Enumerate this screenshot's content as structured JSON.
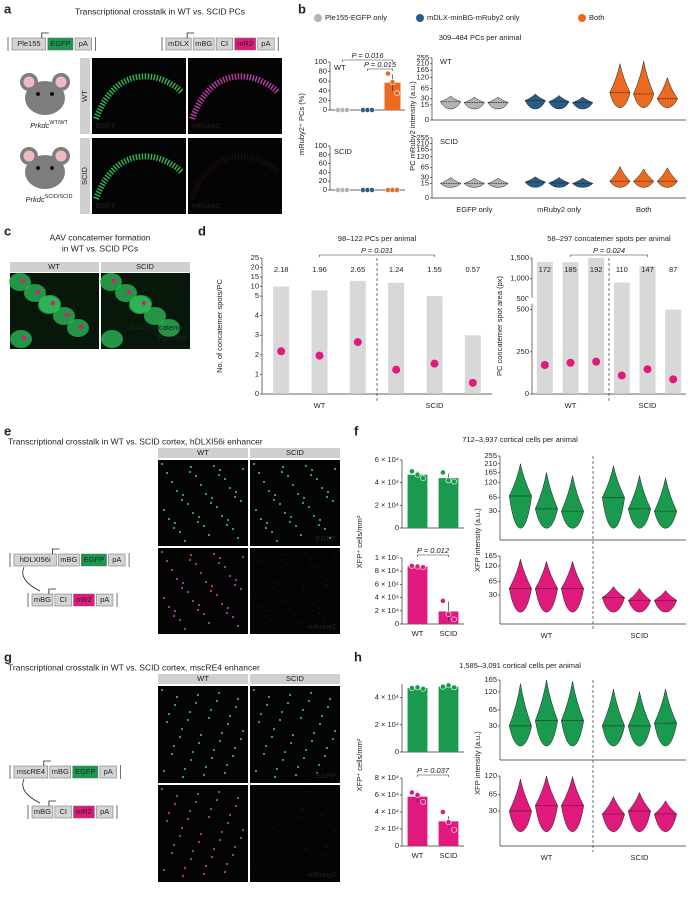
{
  "panels": {
    "a": {
      "label": "a",
      "title": "Transcriptional crosstalk in WT vs. SCID PCs",
      "constructs": [
        {
          "parts": [
            "Ple155",
            "EGFP",
            "pA"
          ],
          "colors": [
            "#d4d4d4",
            "#1a9a4e",
            "#d4d4d4"
          ]
        },
        {
          "parts": [
            "mDLX",
            "mBG",
            "CI",
            "mR2",
            "pA"
          ],
          "colors": [
            "#d4d4d4",
            "#d4d4d4",
            "#d4d4d4",
            "#e0197d",
            "#d4d4d4"
          ]
        }
      ],
      "mice": [
        {
          "name": "Prkdc",
          "sup": "WT/WT"
        },
        {
          "name": "Prkdc",
          "sup": "SCID/SCID"
        }
      ],
      "rows": [
        "WT",
        "SCID"
      ],
      "channels": [
        "EGFP",
        "mRuby2"
      ],
      "channel_colors": [
        "#3ddc6a",
        "#e04ad0"
      ]
    },
    "b": {
      "label": "b",
      "legend": [
        {
          "name": "Ple155-EGFP only",
          "color": "#b3b3b3"
        },
        {
          "name": "mDLX-minBG-mRuby2 only",
          "color": "#2a5b87"
        },
        {
          "name": "Both",
          "color": "#ea6a21"
        }
      ],
      "subtitle": "309–484 PCs per animal",
      "bars": {
        "ylabel": "mRuby2⁺ PCs (%)",
        "ylim": [
          0,
          100
        ],
        "yticks": [
          0,
          20,
          40,
          60,
          80,
          100
        ],
        "charts": [
          {
            "name": "WT",
            "values": [
              0,
              0,
              57
            ],
            "errors": [
              0,
              0,
              17
            ],
            "points": [
              [
                0,
                0,
                0
              ],
              [
                0,
                0,
                0
              ],
              [
                76,
                58,
                35
              ]
            ],
            "pvalues": [
              "P = 0.016",
              "P = 0.015"
            ]
          },
          {
            "name": "SCID",
            "values": [
              0,
              0,
              0
            ],
            "errors": [
              0,
              0,
              0
            ],
            "points": [
              [
                0,
                0,
                0
              ],
              [
                0,
                0,
                0
              ],
              [
                0,
                0,
                0
              ]
            ]
          }
        ]
      },
      "violins": {
        "ylabel": "PC mRuby2 intensity (a.u.)",
        "scale": "sqrt",
        "ylim": [
          0,
          255
        ],
        "yticks": [
          0,
          15,
          30,
          65,
          120,
          165,
          210,
          255
        ],
        "categories": [
          "EGFP only",
          "mRuby2 only",
          "Both"
        ],
        "charts": [
          {
            "name": "WT",
            "groups": [
              [
                [
                  8,
                  22,
                  38
                ],
                [
                  8,
                  20,
                  35
                ],
                [
                  8,
                  20,
                  35
                ]
              ],
              [
                [
                  8,
                  25,
                  45
                ],
                [
                  8,
                  22,
                  40
                ],
                [
                  8,
                  20,
                  35
                ]
              ],
              [
                [
                  10,
                  50,
                  210
                ],
                [
                  10,
                  45,
                  230
                ],
                [
                  10,
                  30,
                  120
                ]
              ]
            ]
          },
          {
            "name": "SCID",
            "groups": [
              [
                [
                  8,
                  15,
                  30
                ],
                [
                  8,
                  15,
                  28
                ],
                [
                  8,
                  15,
                  28
                ]
              ],
              [
                [
                  8,
                  18,
                  32
                ],
                [
                  8,
                  16,
                  30
                ],
                [
                  8,
                  15,
                  28
                ]
              ],
              [
                [
                  8,
                  20,
                  70
                ],
                [
                  8,
                  20,
                  60
                ],
                [
                  8,
                  20,
                  65
                ]
              ]
            ]
          }
        ]
      }
    },
    "c": {
      "label": "c",
      "title": [
        "AAV concatemer formation",
        "in WT vs. SCID PCs"
      ],
      "columns": [
        "WT",
        "SCID"
      ],
      "legend": [
        {
          "name": "AAV concatemer",
          "color": "#e0197d"
        },
        {
          "name": "Hoechst",
          "color": "#2fbf5a"
        }
      ]
    },
    "d": {
      "label": "d",
      "mean_color": "#e0197d",
      "left": {
        "subtitle": "98–122 PCs per animal",
        "pvalue": "P = 0.031",
        "ylabel": "No. of concatemer spots/PC",
        "ylim": [
          0,
          25
        ],
        "ybreak": 5,
        "yticks": [
          0,
          1,
          2,
          3,
          4,
          5,
          10,
          15,
          20,
          25
        ],
        "groups": [
          "WT",
          "SCID"
        ],
        "means": [
          2.18,
          1.96,
          2.65,
          1.24,
          1.55,
          0.57
        ],
        "maxima": [
          10,
          8,
          13,
          12,
          5,
          3
        ]
      },
      "right": {
        "subtitle": "58–297 concatemer spots per animal",
        "pvalue": "P = 0.024",
        "ylabel": "PC concatemer spot area (px)",
        "ylim": [
          0,
          500
        ],
        "yticks": [
          0,
          250,
          500
        ],
        "ylim_upper": [
          500,
          1500
        ],
        "yticks_upper": [
          500,
          {
            "value": 1000,
            "label": "1,000"
          },
          {
            "value": 1500,
            "label": "1,500"
          }
        ],
        "groups": [
          "WT",
          "SCID"
        ],
        "means": [
          172,
          185,
          192,
          110,
          147,
          87
        ],
        "maxima": [
          1400,
          1400,
          1500,
          900,
          1300,
          500
        ]
      }
    },
    "e": {
      "label": "e",
      "title": "Transcriptional crosstalk in WT vs. SCID cortex, hDLXI56i enhancer",
      "constructs": [
        {
          "parts": [
            "hDLXI56i",
            "mBG",
            "EGFP",
            "pA"
          ],
          "colors": [
            "#d4d4d4",
            "#d4d4d4",
            "#1a9a4e",
            "#d4d4d4"
          ]
        },
        {
          "parts": [
            "mBG",
            "CI",
            "mR2",
            "pA"
          ],
          "colors": [
            "#d4d4d4",
            "#d4d4d4",
            "#e0197d",
            "#d4d4d4"
          ]
        }
      ],
      "columns": [
        "WT",
        "SCID"
      ],
      "channels": [
        "EGFP",
        "mRuby2"
      ],
      "channel_colors": [
        "#3ddc6a",
        "#e04ad0"
      ]
    },
    "f": {
      "label": "f",
      "subtitle": "712–3,937 cortical cells per animal",
      "bars": {
        "ylabel": "XFP⁺ cells/mm³",
        "categories": [
          "WT",
          "SCID"
        ],
        "charts": [
          {
            "color": "#1a9a4e",
            "ylim": [
              0,
              60000
            ],
            "yticks": [
              0,
              {
                "value": 20000,
                "label": "2 × 10⁴"
              },
              {
                "value": 40000,
                "label": "4 × 10⁴"
              },
              {
                "value": 60000,
                "label": "6 × 10⁴"
              }
            ],
            "values": [
              47000,
              44000
            ],
            "errors": [
              3000,
              4000
            ],
            "points": [
              [
                50000,
                47000,
                44000
              ],
              [
                49000,
                42000,
                41000
              ]
            ]
          },
          {
            "color": "#e0197d",
            "ylim": [
              0,
              100000
            ],
            "yticks": [
              0,
              {
                "value": 20000,
                "label": "2 × 10⁴"
              },
              {
                "value": 40000,
                "label": "4 × 10⁴"
              },
              {
                "value": 60000,
                "label": "6 × 10⁴"
              },
              {
                "value": 80000,
                "label": "8 × 10⁴"
              },
              {
                "value": 100000,
                "label": "1 × 10⁵"
              }
            ],
            "values": [
              87000,
              19000
            ],
            "errors": [
              1000,
              15000
            ],
            "points": [
              [
                88000,
                87000,
                86000
              ],
              [
                35000,
                15000,
                7000
              ]
            ],
            "pvalue": "P = 0.012"
          }
        ]
      },
      "violins": {
        "ylabel": "XFP intensity (a.u.)",
        "scale": "sqrt",
        "groups": [
          "WT",
          "SCID"
        ],
        "charts": [
          {
            "color": "#1a9a4e",
            "ylim": [
              0,
              255
            ],
            "yticks": [
              30,
              65,
              120,
              165,
              210,
              255
            ],
            "groups": [
              [
                [
                  5,
                  70,
                  210
                ],
                [
                  5,
                  35,
                  165
                ],
                [
                  5,
                  30,
                  150
                ]
              ],
              [
                [
                  5,
                  65,
                  200
                ],
                [
                  5,
                  35,
                  150
                ],
                [
                  5,
                  30,
                  140
                ]
              ]
            ]
          },
          {
            "color": "#e0197d",
            "ylim": [
              0,
              165
            ],
            "yticks": [
              30,
              65,
              120,
              165
            ],
            "groups": [
              [
                [
                  5,
                  45,
                  150
                ],
                [
                  5,
                  45,
                  140
                ],
                [
                  5,
                  45,
                  140
                ]
              ],
              [
                [
                  5,
                  25,
                  50
                ],
                [
                  5,
                  20,
                  45
                ],
                [
                  5,
                  20,
                  40
                ]
              ]
            ]
          }
        ]
      }
    },
    "g": {
      "label": "g",
      "title": "Transcriptional crosstalk in WT vs. SCID cortex, mscRE4 enhancer",
      "constructs": [
        {
          "parts": [
            "mscRE4",
            "mBG",
            "EGFP",
            "pA"
          ],
          "colors": [
            "#d4d4d4",
            "#d4d4d4",
            "#1a9a4e",
            "#d4d4d4"
          ]
        },
        {
          "parts": [
            "mBG",
            "CI",
            "mR2",
            "pA"
          ],
          "colors": [
            "#d4d4d4",
            "#d4d4d4",
            "#e0197d",
            "#d4d4d4"
          ]
        }
      ],
      "columns": [
        "WT",
        "SCID"
      ],
      "channels": [
        "EGFP",
        "mRuby2"
      ],
      "channel_colors": [
        "#3ddc6a",
        "#e04ad0"
      ]
    },
    "h": {
      "label": "h",
      "subtitle": "1,585–3,091 cortical cells per animal",
      "bars": {
        "ylabel": "XFP⁺ cells/mm³",
        "categories": [
          "WT",
          "SCID"
        ],
        "charts": [
          {
            "color": "#1a9a4e",
            "ylim": [
              0,
              50000
            ],
            "yticks": [
              0,
              {
                "value": 20000,
                "label": "2 × 10⁴"
              },
              {
                "value": 40000,
                "label": "4 × 10⁴"
              }
            ],
            "values": [
              47000,
              48000
            ],
            "errors": [
              500,
              1000
            ],
            "points": [
              [
                47000,
                47500,
                46500
              ],
              [
                48000,
                49000,
                47500
              ]
            ]
          },
          {
            "color": "#e0197d",
            "ylim": [
              0,
              80000
            ],
            "yticks": [
              0,
              {
                "value": 20000,
                "label": "2 × 10⁴"
              },
              {
                "value": 40000,
                "label": "4 × 10⁴"
              },
              {
                "value": 60000,
                "label": "6 × 10⁴"
              },
              {
                "value": 80000,
                "label": "8 × 10⁴"
              }
            ],
            "values": [
              58000,
              29000
            ],
            "errors": [
              6000,
              6000
            ],
            "points": [
              [
                63000,
                60000,
                52000
              ],
              [
                40000,
                28000,
                19000
              ]
            ],
            "pvalue": "P = 0.037"
          }
        ]
      },
      "violins": {
        "ylabel": "XFP intensity (a.u.)",
        "scale": "sqrt",
        "groups": [
          "WT",
          "SCID"
        ],
        "charts": [
          {
            "color": "#1a9a4e",
            "ylim": [
              0,
              165
            ],
            "yticks": [
              30,
              65,
              120,
              165
            ],
            "groups": [
              [
                [
                  5,
                  30,
                  150
                ],
                [
                  5,
                  40,
                  165
                ],
                [
                  5,
                  40,
                  160
                ]
              ],
              [
                [
                  5,
                  30,
                  130
                ],
                [
                  5,
                  30,
                  120
                ],
                [
                  5,
                  35,
                  130
                ]
              ]
            ]
          },
          {
            "color": "#e0197d",
            "ylim": [
              0,
              120
            ],
            "yticks": [
              30,
              65,
              120
            ],
            "groups": [
              [
                [
                  5,
                  30,
                  110
                ],
                [
                  5,
                  40,
                  120
                ],
                [
                  5,
                  40,
                  118
                ]
              ],
              [
                [
                  5,
                  25,
                  60
                ],
                [
                  5,
                  30,
                  70
                ],
                [
                  5,
                  25,
                  50
                ]
              ]
            ]
          }
        ]
      }
    }
  }
}
